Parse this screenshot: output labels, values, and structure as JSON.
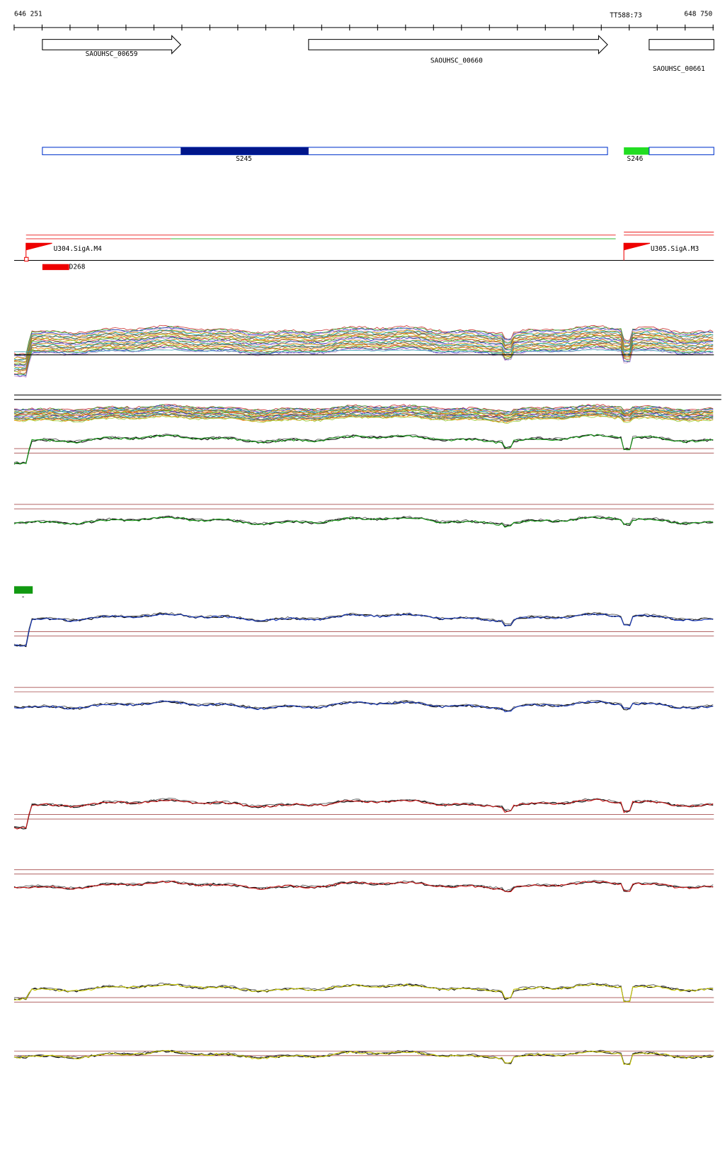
{
  "ruler": {
    "start": "646 251",
    "end": "648 750",
    "marker": "TT588:73"
  },
  "genes": [
    {
      "label": "SAOUHSC_00659"
    },
    {
      "label": "SAOUHSC_00660"
    },
    {
      "label": "SAOUHSC_00661"
    }
  ],
  "segments": [
    {
      "label": "S245"
    },
    {
      "label": "S246"
    }
  ],
  "promoters": [
    {
      "label": "U304.SigA.M4"
    },
    {
      "label": "U305.SigA.M3"
    }
  ],
  "feature": {
    "label": "D268"
  },
  "legend_mark": "-"
}
